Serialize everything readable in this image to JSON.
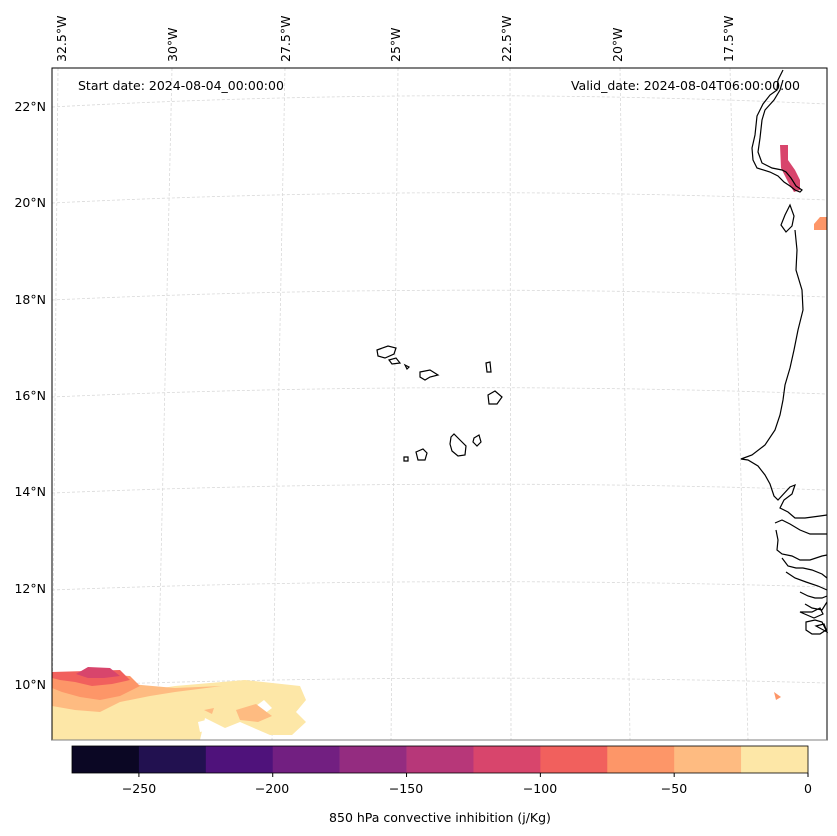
{
  "map": {
    "start_date": "Start date: 2024-08-04_00:00:00",
    "valid_date": "Valid_date: 2024-08-04T06:00:00.00",
    "lon_labels": [
      "32.5°W",
      "30°W",
      "27.5°W",
      "25°W",
      "22.5°W",
      "20°W",
      "17.5°W"
    ],
    "lat_labels": [
      "22°N",
      "20°N",
      "18°N",
      "16°N",
      "14°N",
      "12°N",
      "10°N"
    ],
    "gridlines": true,
    "colors": {
      "coastline": "#000000",
      "gridline": "#d9d9d9",
      "frame": "#000000"
    }
  },
  "colorbar": {
    "label": "850 hPa convective inhibition (j/Kg)",
    "ticks": [
      "−250",
      "−200",
      "−150",
      "−100",
      "−50",
      "0"
    ],
    "levels": [
      -275,
      -250,
      -225,
      -200,
      -175,
      -150,
      -125,
      -100,
      -75,
      -50,
      -25,
      0
    ],
    "colors": [
      "#0b0724",
      "#221150",
      "#4f127b",
      "#721f81",
      "#942c80",
      "#b73779",
      "#d8456c",
      "#f1605d",
      "#fd9668",
      "#febb81",
      "#fde7a7"
    ],
    "colormap": "magma"
  }
}
